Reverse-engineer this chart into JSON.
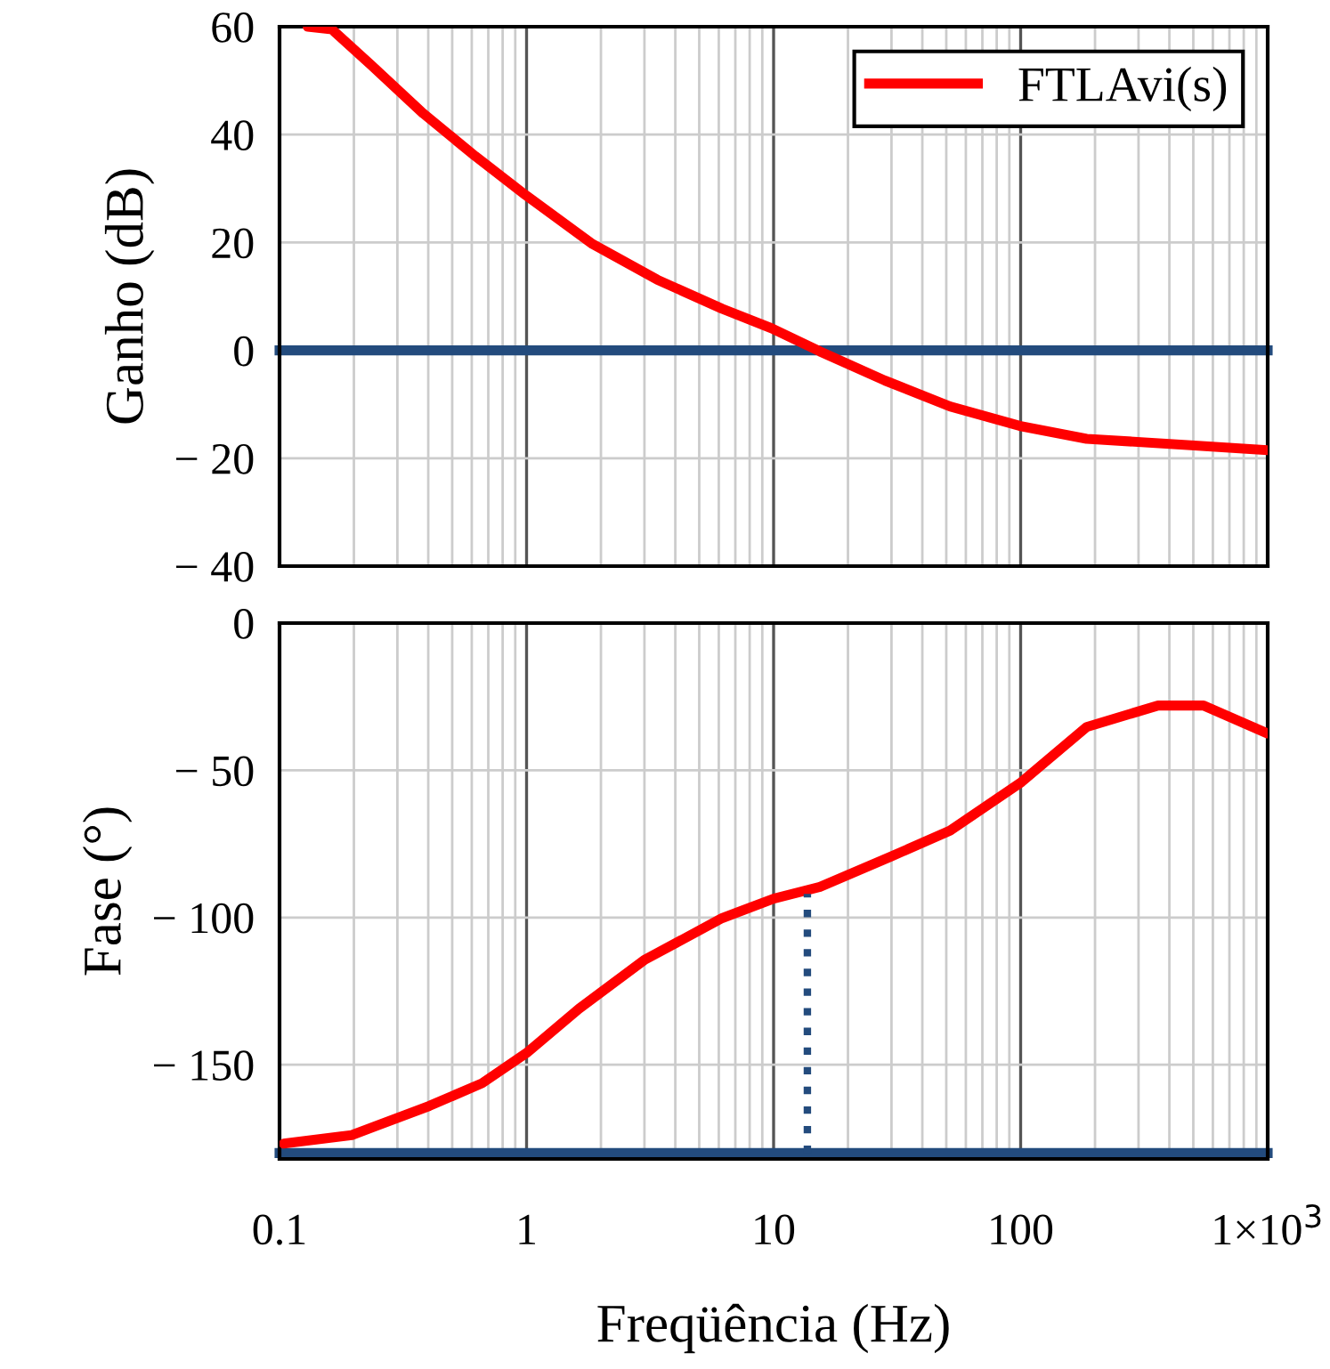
{
  "chart_data": [
    {
      "type": "line",
      "ylabel": "Ganho (dB)",
      "log": "x",
      "xlim": [
        0.1,
        1000
      ],
      "xticks": [
        {
          "value": 0.1,
          "label": null
        },
        {
          "value": 1,
          "label": null
        },
        {
          "value": 10,
          "label": null
        },
        {
          "value": 100,
          "label": null
        },
        {
          "value": 1000,
          "label": null
        }
      ],
      "ylim": [
        -40,
        60
      ],
      "yticks": [
        {
          "value": -40,
          "label": "− 40"
        },
        {
          "value": -20,
          "label": "− 20"
        },
        0,
        20,
        40,
        60
      ],
      "tick_labels": "y",
      "grid": true,
      "legend": "top right",
      "line_style": "solid",
      "marker": "none",
      "series": [
        {
          "name": "FTLAvi(s)",
          "color": "#ff0000",
          "x": [
            0.13,
            0.163,
            0.235,
            0.382,
            0.62,
            0.99,
            1.85,
            3.38,
            6.19,
            9.8,
            15.4,
            28.2,
            51.8,
            99,
            185,
            489,
            1000
          ],
          "values": [
            60,
            59.5,
            52.9,
            43.9,
            36.0,
            28.8,
            19.7,
            13.1,
            7.7,
            4.1,
            -0.2,
            -5.6,
            -10.4,
            -14.0,
            -16.4,
            -17.6,
            -18.5
          ]
        }
      ],
      "ref_lines": [
        {
          "axis": "y",
          "value": 0,
          "color": "#234b7d"
        }
      ]
    },
    {
      "type": "line",
      "ylabel": "Fase (°)",
      "xlabel": "Freqüência (Hz)",
      "log": "x",
      "xlim": [
        0.1,
        1000
      ],
      "xticks": [
        0.1,
        1,
        10,
        100,
        {
          "value": 1000,
          "label": "1×10$^{3}$"
        }
      ],
      "ylim": [
        -182,
        0
      ],
      "yticks": [
        {
          "value": -150,
          "label": "− 150"
        },
        {
          "value": -100,
          "label": "− 100"
        },
        {
          "value": -50,
          "label": "− 50"
        },
        0
      ],
      "grid": true,
      "line_style": "solid",
      "marker": "none",
      "series": [
        {
          "color": "#ff0000",
          "x": [
            0.104,
            0.196,
            0.404,
            0.66,
            1.0,
            1.63,
            2.99,
            6.19,
            10,
            15.4,
            29.8,
            51.8,
            100.8,
            185,
            360,
            550,
            1000
          ],
          "values": [
            -176.8,
            -173.9,
            -164,
            -156.3,
            -146,
            -131,
            -114.5,
            -100.2,
            -93.6,
            -89.6,
            -79.3,
            -70.5,
            -54,
            -35.3,
            -28,
            -28,
            -37.5
          ]
        },
        {
          "color": "#234b7d",
          "line_style": "dotted",
          "x": [
            13.7,
            13.7
          ],
          "values": [
            -180,
            -92
          ]
        }
      ],
      "ref_lines": [
        {
          "axis": "y",
          "value": -180,
          "color": "#234b7d"
        }
      ]
    }
  ]
}
